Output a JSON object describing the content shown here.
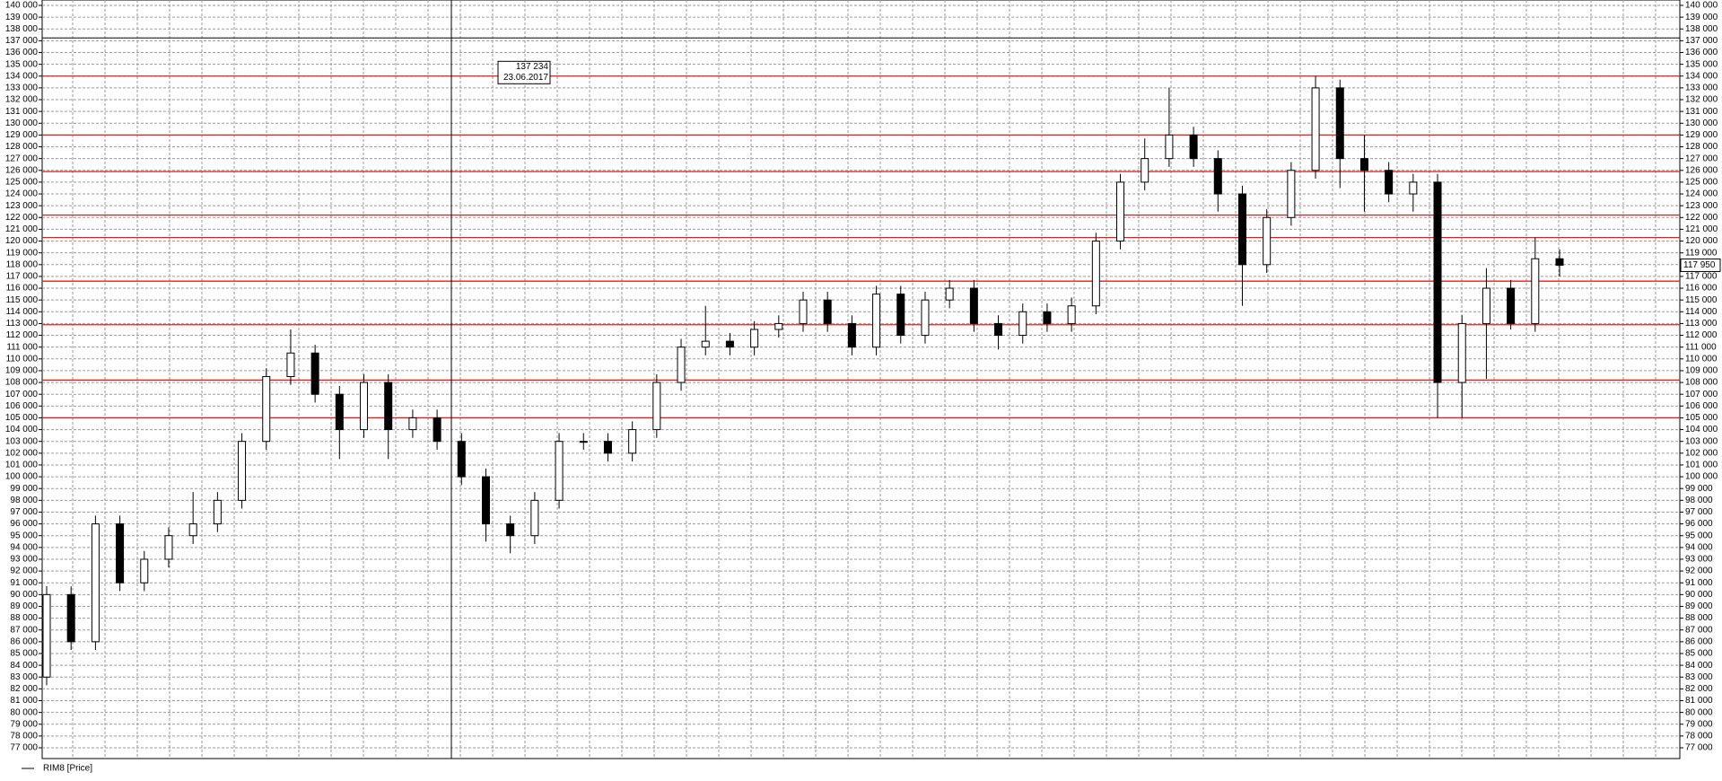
{
  "chart_data": {
    "type": "candlestick",
    "series": [
      {
        "name": "RIM8 [Price]",
        "color": "#000000",
        "open": [
          83000,
          90000,
          86000,
          96000,
          91000,
          93000,
          95000,
          96000,
          98000,
          103000,
          108500,
          110500,
          107000,
          104000,
          108000,
          104000,
          105000,
          103000,
          100000,
          96000,
          95000,
          98000,
          103000,
          103000,
          102000,
          104000,
          108000,
          111000,
          111500,
          111000,
          112500,
          113000,
          115000,
          113000,
          111000,
          115500,
          112000,
          115000,
          116000,
          113000,
          112000,
          114000,
          113000,
          114500,
          120000,
          125000,
          127000,
          129000,
          127000,
          124000,
          118000,
          122000,
          126000,
          133000,
          127000,
          126000,
          124000,
          125000,
          108000,
          113000,
          116000,
          113000,
          118500
        ],
        "high": [
          90700,
          90700,
          96700,
          96700,
          93700,
          95700,
          98700,
          98700,
          103700,
          109200,
          112500,
          111200,
          107700,
          108700,
          108700,
          105700,
          105700,
          103700,
          100700,
          96700,
          98700,
          103700,
          103700,
          103700,
          104700,
          108700,
          111700,
          114500,
          112200,
          113200,
          113700,
          115700,
          115700,
          113700,
          116200,
          116200,
          115700,
          116700,
          116700,
          113700,
          114700,
          114700,
          115200,
          120700,
          125700,
          128700,
          133000,
          129700,
          127700,
          124700,
          122700,
          126700,
          134000,
          133700,
          129000,
          126700,
          125700,
          125700,
          113700,
          117700,
          116700,
          120300,
          119300
        ],
        "low": [
          82300,
          85300,
          85300,
          90300,
          90300,
          92300,
          94300,
          95300,
          97300,
          102300,
          107800,
          106300,
          101500,
          103300,
          101500,
          103300,
          102300,
          99300,
          94500,
          93500,
          94300,
          97300,
          102300,
          101300,
          101300,
          103300,
          107300,
          110300,
          110300,
          110300,
          111800,
          112300,
          112300,
          110300,
          110300,
          111300,
          111300,
          114300,
          112300,
          110800,
          111300,
          112300,
          112300,
          113800,
          119300,
          124300,
          126300,
          126300,
          122500,
          114500,
          117300,
          121300,
          125300,
          124500,
          122500,
          123300,
          122500,
          105000,
          105000,
          108300,
          112500,
          112300,
          117000
        ],
        "close": [
          90000,
          86000,
          96000,
          91000,
          93000,
          95000,
          96000,
          98000,
          103000,
          108500,
          110500,
          107000,
          104000,
          108000,
          104000,
          105000,
          103000,
          100000,
          96000,
          95000,
          98000,
          103000,
          103000,
          102000,
          104000,
          108000,
          111000,
          111500,
          111000,
          112500,
          113000,
          115000,
          113000,
          111000,
          115500,
          112000,
          115000,
          116000,
          113000,
          112000,
          114000,
          113000,
          114500,
          120000,
          125000,
          127000,
          129000,
          127000,
          124000,
          118000,
          122000,
          126000,
          133000,
          127000,
          126000,
          124000,
          125000,
          108000,
          113000,
          116000,
          113000,
          118500,
          117950
        ]
      }
    ],
    "ylim": [
      77000,
      140000
    ],
    "yticks": [
      {
        "value": 77000,
        "label": "77 000"
      },
      {
        "value": 78000,
        "label": "78 000"
      },
      {
        "value": 79000,
        "label": "79 000"
      },
      {
        "value": 80000,
        "label": "80 000"
      },
      {
        "value": 81000,
        "label": "81 000"
      },
      {
        "value": 82000,
        "label": "82 000"
      },
      {
        "value": 83000,
        "label": "83 000"
      },
      {
        "value": 84000,
        "label": "84 000"
      },
      {
        "value": 85000,
        "label": "85 000"
      },
      {
        "value": 86000,
        "label": "86 000"
      },
      {
        "value": 87000,
        "label": "87 000"
      },
      {
        "value": 88000,
        "label": "88 000"
      },
      {
        "value": 89000,
        "label": "89 000"
      },
      {
        "value": 90000,
        "label": "90 000"
      },
      {
        "value": 91000,
        "label": "91 000"
      },
      {
        "value": 92000,
        "label": "92 000"
      },
      {
        "value": 93000,
        "label": "93 000"
      },
      {
        "value": 94000,
        "label": "94 000"
      },
      {
        "value": 95000,
        "label": "95 000"
      },
      {
        "value": 96000,
        "label": "96 000"
      },
      {
        "value": 97000,
        "label": "97 000"
      },
      {
        "value": 98000,
        "label": "98 000"
      },
      {
        "value": 99000,
        "label": "99 000"
      },
      {
        "value": 100000,
        "label": "100 000"
      },
      {
        "value": 101000,
        "label": "101 000"
      },
      {
        "value": 102000,
        "label": "102 000"
      },
      {
        "value": 103000,
        "label": "103 000"
      },
      {
        "value": 104000,
        "label": "104 000"
      },
      {
        "value": 105000,
        "label": "105 000"
      },
      {
        "value": 106000,
        "label": "106 000"
      },
      {
        "value": 107000,
        "label": "107 000"
      },
      {
        "value": 108000,
        "label": "108 000"
      },
      {
        "value": 109000,
        "label": "109 000"
      },
      {
        "value": 110000,
        "label": "110 000"
      },
      {
        "value": 111000,
        "label": "111 000"
      },
      {
        "value": 112000,
        "label": "112 000"
      },
      {
        "value": 113000,
        "label": "113 000"
      },
      {
        "value": 114000,
        "label": "114 000"
      },
      {
        "value": 115000,
        "label": "115 000"
      },
      {
        "value": 116000,
        "label": "116 000"
      },
      {
        "value": 117000,
        "label": "117 000"
      },
      {
        "value": 118000,
        "label": "118 000"
      },
      {
        "value": 119000,
        "label": "119 000"
      },
      {
        "value": 120000,
        "label": "120 000"
      },
      {
        "value": 121000,
        "label": "121 000"
      },
      {
        "value": 122000,
        "label": "122 000"
      },
      {
        "value": 123000,
        "label": "123 000"
      },
      {
        "value": 124000,
        "label": "124 000"
      },
      {
        "value": 125000,
        "label": "125 000"
      },
      {
        "value": 126000,
        "label": "126 000"
      },
      {
        "value": 127000,
        "label": "127 000"
      },
      {
        "value": 128000,
        "label": "128 000"
      },
      {
        "value": 129000,
        "label": "129 000"
      },
      {
        "value": 130000,
        "label": "130 000"
      },
      {
        "value": 131000,
        "label": "131 000"
      },
      {
        "value": 132000,
        "label": "132 000"
      },
      {
        "value": 133000,
        "label": "133 000"
      },
      {
        "value": 134000,
        "label": "134 000"
      },
      {
        "value": 135000,
        "label": "135 000"
      },
      {
        "value": 136000,
        "label": "136 000"
      },
      {
        "value": 137000,
        "label": "137 000"
      },
      {
        "value": 138000,
        "label": "138 000"
      },
      {
        "value": 139000,
        "label": "139 000"
      },
      {
        "value": 140000,
        "label": "140 000"
      }
    ],
    "grid": true,
    "levels": {
      "color": "#e02020",
      "values": [
        134000,
        129000,
        125900,
        122200,
        120300,
        116600,
        112900,
        108200,
        105000
      ]
    },
    "crosshair": {
      "value": 137234,
      "label": "137 234",
      "date": "23.06.2017"
    },
    "last_price": {
      "value": 117950,
      "label": "117 950"
    }
  }
}
